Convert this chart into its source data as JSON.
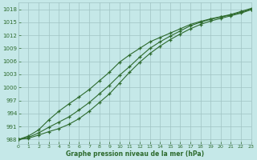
{
  "x": [
    0,
    1,
    2,
    3,
    4,
    5,
    6,
    7,
    8,
    9,
    10,
    11,
    12,
    13,
    14,
    15,
    16,
    17,
    18,
    19,
    20,
    21,
    22,
    23
  ],
  "line_upper": [
    988.0,
    988.8,
    990.2,
    992.5,
    994.5,
    996.2,
    997.8,
    999.5,
    1001.5,
    1003.5,
    1005.8,
    1007.5,
    1009.0,
    1010.5,
    1011.5,
    1012.5,
    1013.5,
    1014.5,
    1015.2,
    1015.8,
    1016.3,
    1016.8,
    1017.5,
    1018.2
  ],
  "line_mid": [
    988.0,
    988.5,
    989.5,
    990.8,
    992.0,
    993.2,
    994.8,
    996.5,
    998.5,
    1000.5,
    1002.8,
    1004.8,
    1007.0,
    1009.0,
    1010.5,
    1011.8,
    1013.0,
    1014.2,
    1015.0,
    1015.7,
    1016.2,
    1016.7,
    1017.3,
    1018.0
  ],
  "line_lower": [
    988.0,
    988.3,
    989.0,
    989.8,
    990.5,
    991.5,
    992.8,
    994.5,
    996.5,
    998.5,
    1001.0,
    1003.5,
    1005.8,
    1007.8,
    1009.5,
    1011.0,
    1012.3,
    1013.5,
    1014.5,
    1015.3,
    1015.9,
    1016.5,
    1017.1,
    1017.9
  ],
  "ylim": [
    987.0,
    1019.5
  ],
  "xlim": [
    0,
    23
  ],
  "yticks": [
    988,
    991,
    994,
    997,
    1000,
    1003,
    1006,
    1009,
    1012,
    1015,
    1018
  ],
  "xticks": [
    0,
    1,
    2,
    3,
    4,
    5,
    6,
    7,
    8,
    9,
    10,
    11,
    12,
    13,
    14,
    15,
    16,
    17,
    18,
    19,
    20,
    21,
    22,
    23
  ],
  "xlabel": "Graphe pression niveau de la mer (hPa)",
  "line_color": "#2d6a2d",
  "marker": "+",
  "bg_color": "#c5e8e8",
  "grid_color": "#a0c4c4"
}
